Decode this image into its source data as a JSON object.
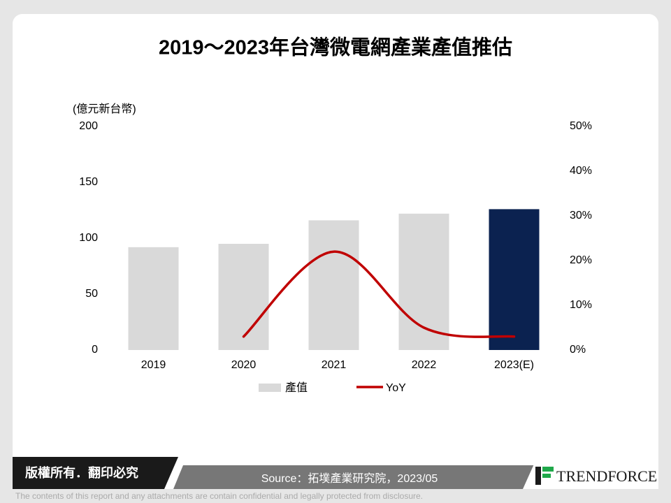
{
  "chart_data": {
    "type": "bar_line",
    "title": "2019～2023年台灣微電網產業產值推估",
    "y_label": "(億元新台幣)",
    "categories": [
      "2019",
      "2020",
      "2021",
      "2022",
      "2023(E)"
    ],
    "series": [
      {
        "name": "產值",
        "type": "bar",
        "color": "#d9d9d9",
        "colors": [
          "#d9d9d9",
          "#d9d9d9",
          "#d9d9d9",
          "#d9d9d9",
          "#0b2250"
        ],
        "values": [
          92,
          95,
          116,
          122,
          126
        ]
      },
      {
        "name": "YoY",
        "type": "line",
        "axis": "y2",
        "color": "#c00000",
        "values": [
          null,
          3,
          22,
          5,
          3
        ]
      }
    ],
    "ylim": [
      0,
      200
    ],
    "yticks": [
      0,
      50,
      100,
      150,
      200
    ],
    "y2lim": [
      0,
      50
    ],
    "y2ticks": [
      {
        "value": 0,
        "label": "0%"
      },
      {
        "value": 10,
        "label": "10%"
      },
      {
        "value": 20,
        "label": "20%"
      },
      {
        "value": 30,
        "label": "30%"
      },
      {
        "value": 40,
        "label": "40%"
      },
      {
        "value": 50,
        "label": "50%"
      }
    ],
    "legend": "bottom"
  },
  "footer": {
    "rights": "版權所有．翻印必究",
    "source": "Source：拓墣產業研究院，2023/05",
    "brand": "TRENDFORCE",
    "disclaimer": "The contents of this report and any attachments are contain confidential and legally protected from disclosure."
  }
}
